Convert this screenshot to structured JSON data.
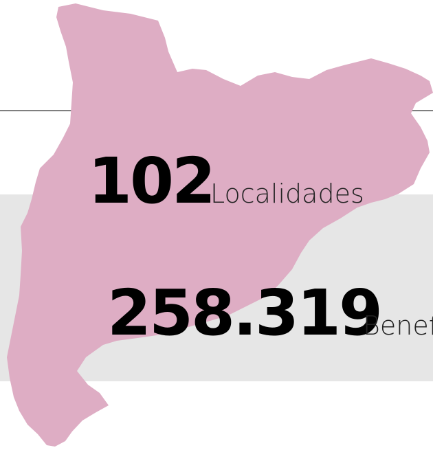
{
  "stats": [
    {
      "value": "102",
      "label": "Localidades"
    },
    {
      "value": "258.319",
      "label": "Benef"
    }
  ]
}
